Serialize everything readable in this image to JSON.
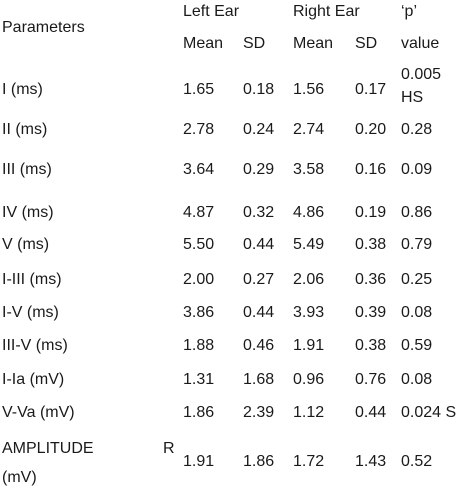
{
  "table": {
    "header": {
      "parameters": "Parameters",
      "left_ear": "Left Ear",
      "right_ear": "Right Ear",
      "p": "‘p’",
      "value": "value",
      "columns": [
        "Mean",
        "SD",
        "Mean",
        "SD"
      ]
    },
    "rows": [
      {
        "parameter": "I (ms)",
        "cells": [
          "1.65",
          "0.18",
          "1.56",
          "0.17"
        ],
        "p": [
          "0.005",
          "HS"
        ]
      },
      {
        "parameter": "II (ms)",
        "cells": [
          "2.78",
          "0.24",
          "2.74",
          "0.20"
        ],
        "p": "0.28"
      },
      {
        "parameter": "III (ms)",
        "cells": [
          "3.64",
          "0.29",
          "3.58",
          "0.16"
        ],
        "p": "0.09"
      },
      {
        "parameter": "IV (ms)",
        "cells": [
          "4.87",
          "0.32",
          "4.86",
          "0.19"
        ],
        "p": "0.86"
      },
      {
        "parameter": "V (ms)",
        "cells": [
          "5.50",
          "0.44",
          "5.49",
          "0.38"
        ],
        "p": "0.79"
      },
      {
        "parameter": "I-III (ms)",
        "cells": [
          "2.00",
          "0.27",
          "2.06",
          "0.36"
        ],
        "p": "0.25"
      },
      {
        "parameter": "I-V (ms)",
        "cells": [
          "3.86",
          "0.44",
          "3.93",
          "0.39"
        ],
        "p": "0.08"
      },
      {
        "parameter": "III-V (ms)",
        "cells": [
          "1.88",
          "0.46",
          "1.91",
          "0.38"
        ],
        "p": "0.59"
      },
      {
        "parameter": "I-Ia (mV)",
        "cells": [
          "1.31",
          "1.68",
          "0.96",
          "0.76"
        ],
        "p": "0.08"
      },
      {
        "parameter": "V-Va (mV)",
        "cells": [
          "1.86",
          "2.39",
          "1.12",
          "0.44"
        ],
        "p": "0.024 S"
      },
      {
        "parameter": [
          "AMPLITUDE",
          "R",
          "(mV)"
        ],
        "cells": [
          "1.91",
          "1.86",
          "1.72",
          "1.43"
        ],
        "p": "0.52"
      }
    ]
  }
}
